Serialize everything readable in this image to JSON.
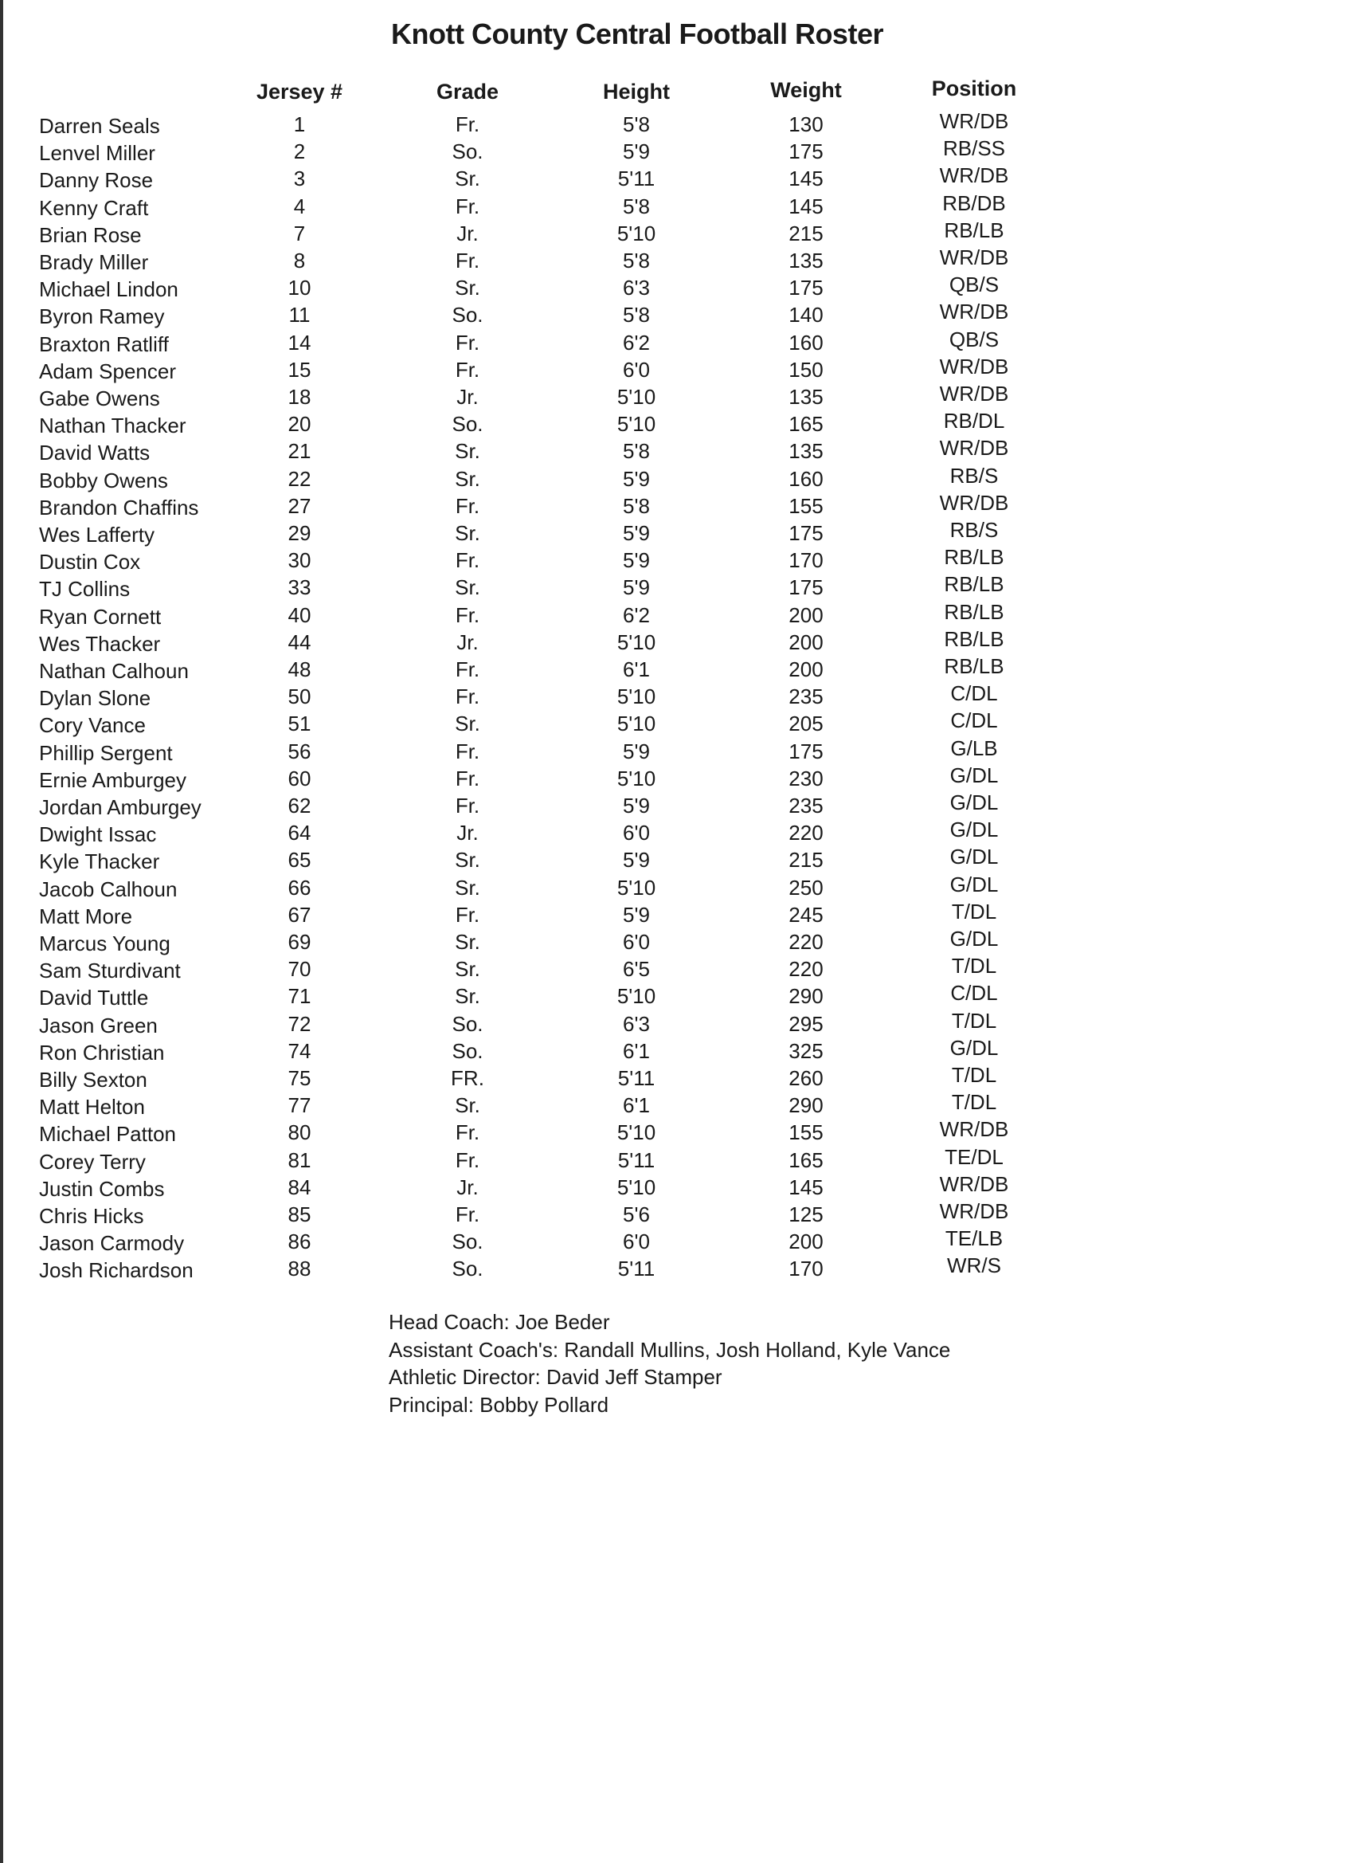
{
  "title": "Knott County Central Football Roster",
  "columns": [
    "Jersey #",
    "Grade",
    "Height",
    "Weight",
    "Position"
  ],
  "players": [
    [
      "Darren Seals",
      "1",
      "Fr.",
      "5'8",
      "130",
      "WR/DB"
    ],
    [
      "Lenvel Miller",
      "2",
      "So.",
      "5'9",
      "175",
      "RB/SS"
    ],
    [
      "Danny Rose",
      "3",
      "Sr.",
      "5'11",
      "145",
      "WR/DB"
    ],
    [
      "Kenny Craft",
      "4",
      "Fr.",
      "5'8",
      "145",
      "RB/DB"
    ],
    [
      "Brian Rose",
      "7",
      "Jr.",
      "5'10",
      "215",
      "RB/LB"
    ],
    [
      "Brady Miller",
      "8",
      "Fr.",
      "5'8",
      "135",
      "WR/DB"
    ],
    [
      "Michael Lindon",
      "10",
      "Sr.",
      "6'3",
      "175",
      "QB/S"
    ],
    [
      "Byron Ramey",
      "11",
      "So.",
      "5'8",
      "140",
      "WR/DB"
    ],
    [
      "Braxton Ratliff",
      "14",
      "Fr.",
      "6'2",
      "160",
      "QB/S"
    ],
    [
      "Adam Spencer",
      "15",
      "Fr.",
      "6'0",
      "150",
      "WR/DB"
    ],
    [
      "Gabe Owens",
      "18",
      "Jr.",
      "5'10",
      "135",
      "WR/DB"
    ],
    [
      "Nathan Thacker",
      "20",
      "So.",
      "5'10",
      "165",
      "RB/DL"
    ],
    [
      "David Watts",
      "21",
      "Sr.",
      "5'8",
      "135",
      "WR/DB"
    ],
    [
      "Bobby Owens",
      "22",
      "Sr.",
      "5'9",
      "160",
      "RB/S"
    ],
    [
      "Brandon Chaffins",
      "27",
      "Fr.",
      "5'8",
      "155",
      "WR/DB"
    ],
    [
      "Wes Lafferty",
      "29",
      "Sr.",
      "5'9",
      "175",
      "RB/S"
    ],
    [
      "Dustin Cox",
      "30",
      "Fr.",
      "5'9",
      "170",
      "RB/LB"
    ],
    [
      "TJ Collins",
      "33",
      "Sr.",
      "5'9",
      "175",
      "RB/LB"
    ],
    [
      "Ryan Cornett",
      "40",
      "Fr.",
      "6'2",
      "200",
      "RB/LB"
    ],
    [
      "Wes Thacker",
      "44",
      "Jr.",
      "5'10",
      "200",
      "RB/LB"
    ],
    [
      "Nathan Calhoun",
      "48",
      "Fr.",
      "6'1",
      "200",
      "RB/LB"
    ],
    [
      "Dylan Slone",
      "50",
      "Fr.",
      "5'10",
      "235",
      "C/DL"
    ],
    [
      "Cory Vance",
      "51",
      "Sr.",
      "5'10",
      "205",
      "C/DL"
    ],
    [
      "Phillip Sergent",
      "56",
      "Fr.",
      "5'9",
      "175",
      "G/LB"
    ],
    [
      "Ernie Amburgey",
      "60",
      "Fr.",
      "5'10",
      "230",
      "G/DL"
    ],
    [
      "Jordan Amburgey",
      "62",
      "Fr.",
      "5'9",
      "235",
      "G/DL"
    ],
    [
      "Dwight Issac",
      "64",
      "Jr.",
      "6'0",
      "220",
      "G/DL"
    ],
    [
      "Kyle Thacker",
      "65",
      "Sr.",
      "5'9",
      "215",
      "G/DL"
    ],
    [
      "Jacob Calhoun",
      "66",
      "Sr.",
      "5'10",
      "250",
      "G/DL"
    ],
    [
      "Matt More",
      "67",
      "Fr.",
      "5'9",
      "245",
      "T/DL"
    ],
    [
      "Marcus Young",
      "69",
      "Sr.",
      "6'0",
      "220",
      "G/DL"
    ],
    [
      "Sam Sturdivant",
      "70",
      "Sr.",
      "6'5",
      "220",
      "T/DL"
    ],
    [
      "David Tuttle",
      "71",
      "Sr.",
      "5'10",
      "290",
      "C/DL"
    ],
    [
      "Jason Green",
      "72",
      "So.",
      "6'3",
      "295",
      "T/DL"
    ],
    [
      "Ron Christian",
      "74",
      "So.",
      "6'1",
      "325",
      "G/DL"
    ],
    [
      "Billy Sexton",
      "75",
      "FR.",
      "5'11",
      "260",
      "T/DL"
    ],
    [
      "Matt Helton",
      "77",
      "Sr.",
      "6'1",
      "290",
      "T/DL"
    ],
    [
      "Michael Patton",
      "80",
      "Fr.",
      "5'10",
      "155",
      "WR/DB"
    ],
    [
      "Corey Terry",
      "81",
      "Fr.",
      "5'11",
      "165",
      "TE/DL"
    ],
    [
      "Justin Combs",
      "84",
      "Jr.",
      "5'10",
      "145",
      "WR/DB"
    ],
    [
      "Chris Hicks",
      "85",
      "Fr.",
      "5'6",
      "125",
      "WR/DB"
    ],
    [
      "Jason Carmody",
      "86",
      "So.",
      "6'0",
      "200",
      "TE/LB"
    ],
    [
      "Josh Richardson",
      "88",
      "So.",
      "5'11",
      "170",
      "WR/S"
    ]
  ],
  "staff": [
    "Head Coach: Joe Beder",
    "Assistant Coach's: Randall Mullins, Josh Holland, Kyle Vance",
    "Athletic Director: David Jeff Stamper",
    "Principal: Bobby Pollard"
  ]
}
